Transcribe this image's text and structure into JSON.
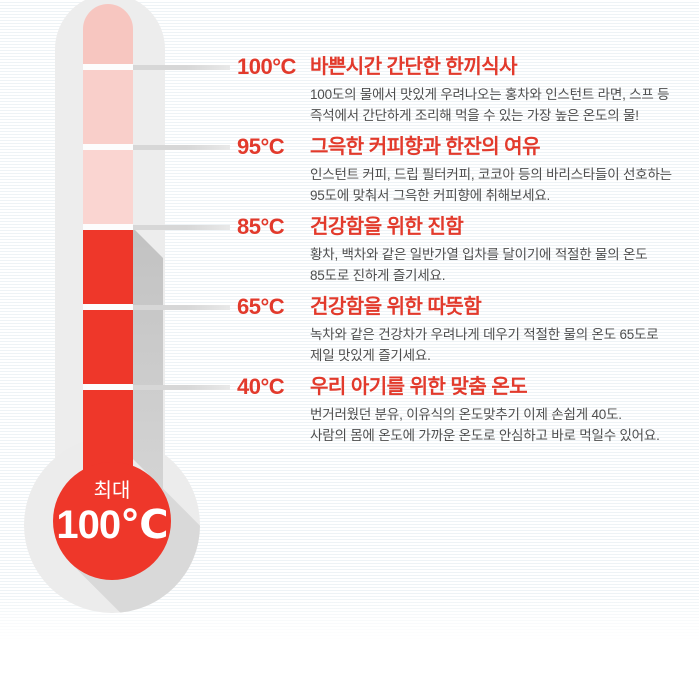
{
  "infographic": {
    "levels": [
      {
        "temp": "100°C",
        "title": "바쁜시간 간단한 한끼식사",
        "body": [
          "100도의 물에서 맛있게 우려나오는 홍차와 인스턴트 라면, 스프 등",
          "즉석에서 간단하게 조리해 먹을 수 있는 가장 높은 온도의 물!"
        ]
      },
      {
        "temp": "95°C",
        "title": "그윽한 커피향과 한잔의 여유",
        "body": [
          "인스턴트 커피, 드립 필터커피, 코코아 등의 바리스타들이 선호하는",
          "95도에 맞춰서 그윽한 커피향에 취해보세요."
        ]
      },
      {
        "temp": "85°C",
        "title": "건강함을 위한 진함",
        "body": [
          "황차, 백차와 같은 일반가열 입차를 달이기에 적절한 물의 온도",
          "85도로 진하게 즐기세요."
        ]
      },
      {
        "temp": "65°C",
        "title": "건강함을 위한 따뜻함",
        "body": [
          "녹차와 같은 건강차가 우려나게 데우기 적절한 물의 온도 65도로",
          "제일 맛있게 즐기세요."
        ]
      },
      {
        "temp": "40°C",
        "title": "우리 아기를 위한 맞춤 온도",
        "body": [
          "번거러웠던 분유, 이유식의 온도맞추기 이제 손쉽게 40도.",
          "사람의 몸에 온도에 가까운 온도로 안심하고 바로 먹일수 있어요."
        ]
      }
    ],
    "bulb": {
      "label": "최대",
      "value": "100℃"
    },
    "colors": {
      "mercury_red": "#ee372a",
      "text_red": "#e23a2c",
      "pink_top": "#f7c6c0",
      "pink_mid": "#f9cfca",
      "pink_low": "#fad5d1",
      "tube_gray": "#ededed",
      "bulb_gray": "#ececec",
      "shadow_gray": "#c9c9c9",
      "tick_line_gray": "#d9d9d9",
      "body_text": "#4e4e4e"
    }
  }
}
